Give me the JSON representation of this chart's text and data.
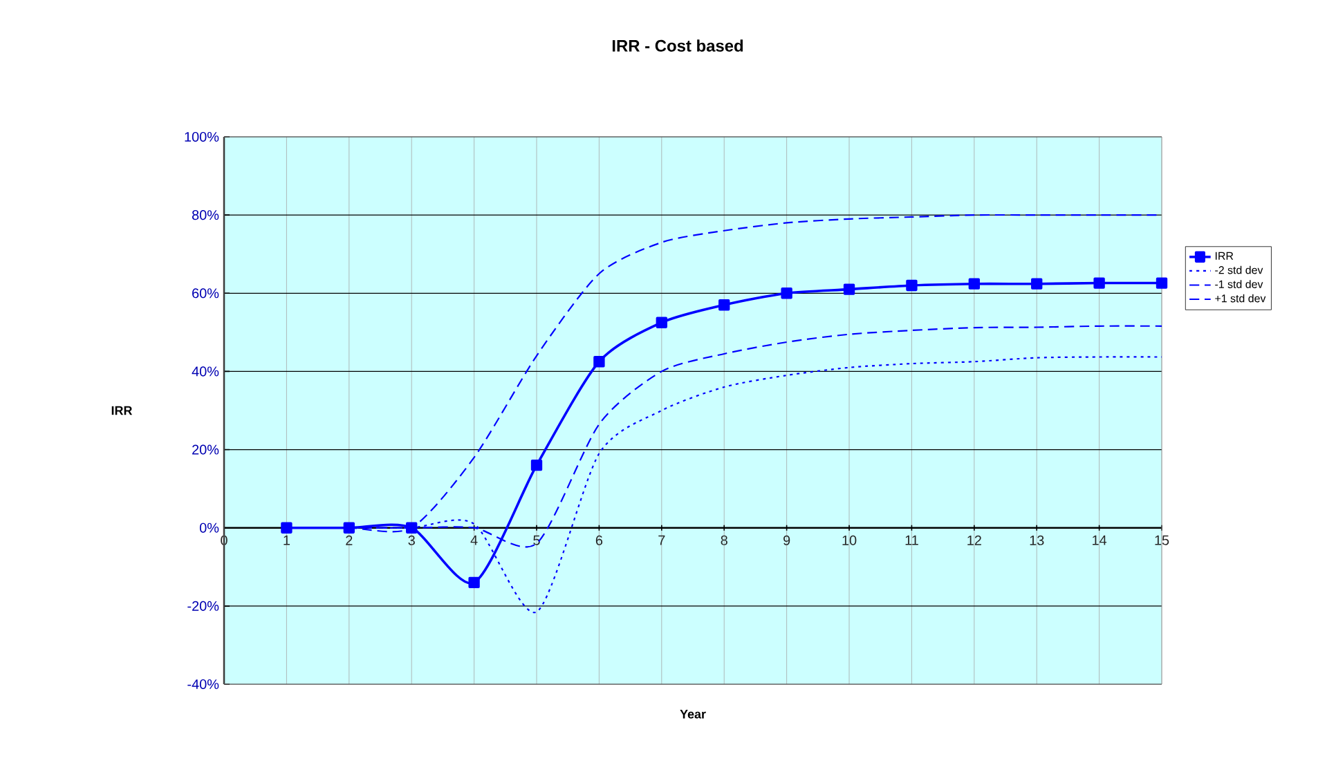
{
  "chart_data": {
    "type": "line",
    "title": "IRR - Cost based",
    "xlabel": "Year",
    "ylabel": "IRR",
    "x": [
      1,
      2,
      3,
      4,
      5,
      6,
      7,
      8,
      9,
      10,
      11,
      12,
      13,
      14,
      15
    ],
    "series": [
      {
        "name": "IRR",
        "color": "#0000ff",
        "marker": "square",
        "line_style": "solid",
        "values": [
          0,
          0,
          0,
          -14,
          16,
          42.5,
          52.5,
          57,
          60,
          61,
          62,
          62.4,
          62.4,
          62.6,
          62.6
        ]
      },
      {
        "name": "-2 std dev",
        "color": "#0000ff",
        "marker": "none",
        "line_style": "dotted",
        "values": [
          0,
          0,
          0,
          1,
          -21.5,
          19,
          30,
          36,
          39,
          41,
          42,
          42.5,
          43.5,
          43.7,
          43.7
        ]
      },
      {
        "name": "-1 std dev",
        "color": "#0000ff",
        "marker": "none",
        "line_style": "dashed",
        "values": [
          0,
          0,
          0,
          0,
          -4,
          26.5,
          40,
          44.5,
          47.5,
          49.5,
          50.5,
          51.2,
          51.3,
          51.6,
          51.6
        ]
      },
      {
        "name": "+1 std dev",
        "color": "#0000ff",
        "marker": "none",
        "line_style": "dashed",
        "values": [
          0,
          0,
          0,
          18,
          44,
          65,
          73,
          76,
          78,
          79,
          79.5,
          80,
          80,
          80,
          80
        ]
      }
    ],
    "xlim": [
      0,
      15
    ],
    "xticks": [
      0,
      1,
      2,
      3,
      4,
      5,
      6,
      7,
      8,
      9,
      10,
      11,
      12,
      13,
      14,
      15
    ],
    "ylim": [
      -40,
      100
    ],
    "yticks": [
      {
        "value": -40,
        "label": "-40%"
      },
      {
        "value": -20,
        "label": "-20%"
      },
      {
        "value": 0,
        "label": "0%"
      },
      {
        "value": 20,
        "label": "20%"
      },
      {
        "value": 40,
        "label": "40%"
      },
      {
        "value": 60,
        "label": "60%"
      },
      {
        "value": 80,
        "label": "80%"
      },
      {
        "value": 100,
        "label": "100%"
      }
    ],
    "grid": true,
    "legend": "right"
  }
}
